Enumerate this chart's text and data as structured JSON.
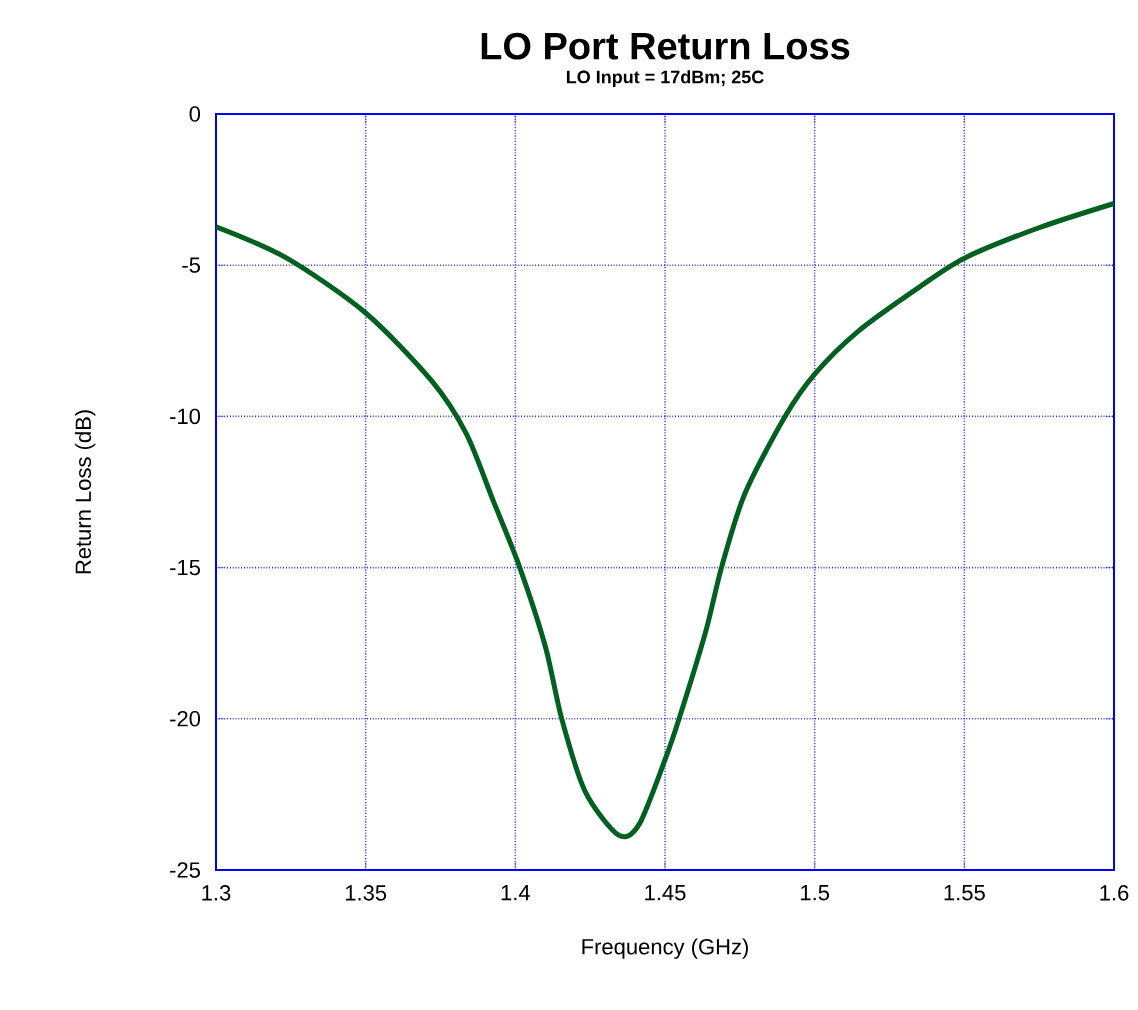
{
  "chart_data": {
    "type": "line",
    "title": "LO Port Return Loss",
    "subtitle": "LO Input = 17dBm; 25C",
    "xlabel": "Frequency (GHz)",
    "ylabel": "Return Loss (dB)",
    "x": [
      1.3,
      1.3235,
      1.35,
      1.372,
      1.3836,
      1.3925,
      1.4013,
      1.41,
      1.4155,
      1.4233,
      1.4344,
      1.4413,
      1.4502,
      1.4547,
      1.4635,
      1.469,
      1.4767,
      1.49,
      1.5,
      1.5147,
      1.5347,
      1.5502,
      1.5747,
      1.6
    ],
    "series": [
      {
        "color": "#006020",
        "values": [
          -3.73,
          -4.76,
          -6.58,
          -8.82,
          -10.57,
          -12.76,
          -14.95,
          -17.6,
          -20.0,
          -22.4,
          -23.84,
          -23.5,
          -21.3,
          -20.0,
          -17.15,
          -14.95,
          -12.55,
          -10.02,
          -8.6,
          -7.17,
          -5.74,
          -4.76,
          -3.77,
          -2.96
        ]
      }
    ],
    "xlim": [
      1.3,
      1.6
    ],
    "xticks": [
      1.3,
      1.35,
      1.4,
      1.45,
      1.5,
      1.55,
      1.6
    ],
    "ylim": [
      -25,
      0
    ],
    "yticks": [
      -25,
      -20,
      -15,
      -10,
      -5,
      0
    ],
    "grid": true,
    "marker": "none",
    "line_style": "solid"
  }
}
